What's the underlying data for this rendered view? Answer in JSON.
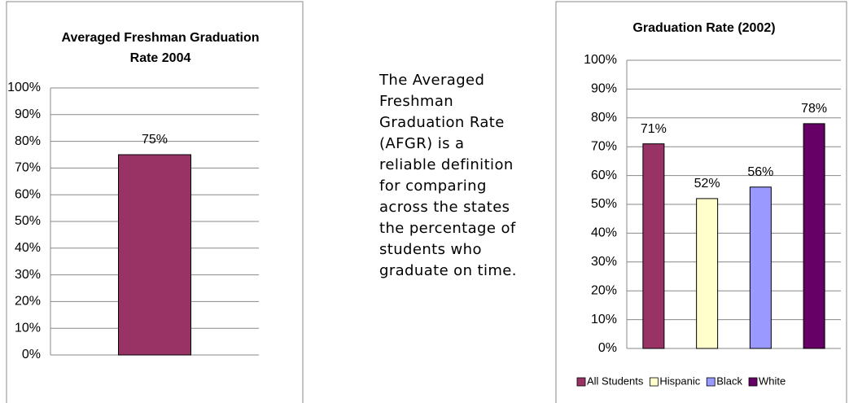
{
  "chart_data": [
    {
      "type": "bar",
      "title": "Averaged Freshman Graduation Rate 2004",
      "categories": [
        null
      ],
      "values": [
        75
      ],
      "value_labels": [
        "75%"
      ],
      "colors": [
        "#993366"
      ],
      "ylim": [
        0,
        100
      ],
      "yticks": [
        {
          "value": 0,
          "label": "0%"
        },
        {
          "value": 10,
          "label": "10%"
        },
        {
          "value": 20,
          "label": "20%"
        },
        {
          "value": 30,
          "label": "30%"
        },
        {
          "value": 40,
          "label": "40%"
        },
        {
          "value": 50,
          "label": "50%"
        },
        {
          "value": 60,
          "label": "60%"
        },
        {
          "value": 70,
          "label": "70%"
        },
        {
          "value": 80,
          "label": "80%"
        },
        {
          "value": 90,
          "label": "90%"
        },
        {
          "value": 100,
          "label": "100%"
        }
      ],
      "grid": true
    },
    {
      "type": "bar",
      "title": "Graduation Rate (2002)",
      "categories": [
        "All Students",
        "Hispanic",
        "Black",
        "White"
      ],
      "values": [
        71,
        52,
        56,
        78
      ],
      "value_labels": [
        "71%",
        "52%",
        "56%",
        "78%"
      ],
      "colors": [
        "#993366",
        "#ffffcc",
        "#9999ff",
        "#660066"
      ],
      "ylim": [
        0,
        100
      ],
      "yticks": [
        {
          "value": 0,
          "label": "0%"
        },
        {
          "value": 10,
          "label": "10%"
        },
        {
          "value": 20,
          "label": "20%"
        },
        {
          "value": 30,
          "label": "30%"
        },
        {
          "value": 40,
          "label": "40%"
        },
        {
          "value": 50,
          "label": "50%"
        },
        {
          "value": 60,
          "label": "60%"
        },
        {
          "value": 70,
          "label": "70%"
        },
        {
          "value": 80,
          "label": "80%"
        },
        {
          "value": 90,
          "label": "90%"
        },
        {
          "value": 100,
          "label": "100%"
        }
      ],
      "grid": true,
      "legend": "bottom"
    }
  ],
  "text": "The Averaged Freshman Graduation Rate (AFGR) is a reliable definition for comparing across the states the percentage of students who graduate on time."
}
